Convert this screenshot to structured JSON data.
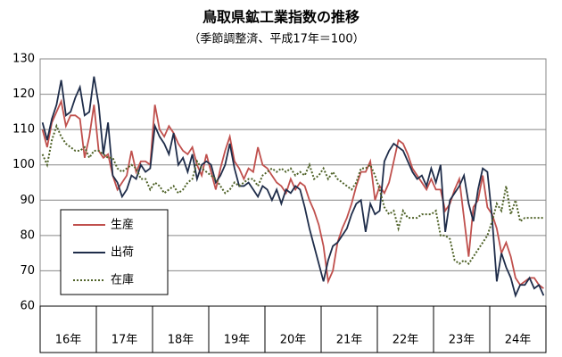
{
  "chart_data": {
    "type": "line",
    "title": "鳥取県鉱工業指数の推移",
    "subtitle": "（季節調整済、平成17年＝100）",
    "categories": [
      null,
      null,
      null,
      null,
      null,
      null,
      "16年",
      null,
      null,
      null,
      null,
      null,
      null,
      null,
      null,
      null,
      null,
      null,
      "17年",
      null,
      null,
      null,
      null,
      null,
      null,
      null,
      null,
      null,
      null,
      null,
      "18年",
      null,
      null,
      null,
      null,
      null,
      null,
      null,
      null,
      null,
      null,
      null,
      "19年",
      null,
      null,
      null,
      null,
      null,
      null,
      null,
      null,
      null,
      null,
      null,
      "20年",
      null,
      null,
      null,
      null,
      null,
      null,
      null,
      null,
      null,
      null,
      null,
      "21年",
      null,
      null,
      null,
      null,
      null,
      null,
      null,
      null,
      null,
      null,
      null,
      "22年",
      null,
      null,
      null,
      null,
      null,
      null,
      null,
      null,
      null,
      null,
      null,
      "23年",
      null,
      null,
      null,
      null,
      null,
      null,
      null,
      null,
      null,
      null,
      null,
      "24年",
      null,
      null,
      null,
      null,
      null
    ],
    "series": [
      {
        "name": "生産",
        "color": "#c0504d",
        "dash": false,
        "values": [
          110,
          105,
          112,
          115,
          118,
          111,
          114,
          114,
          113,
          102,
          108,
          117,
          104,
          102,
          103,
          97,
          93,
          95,
          97,
          104,
          98,
          101,
          101,
          100,
          117,
          110,
          108,
          111,
          109,
          106,
          104,
          103,
          105,
          100,
          97,
          103,
          98,
          93,
          99,
          104,
          108,
          101,
          99,
          96,
          99,
          98,
          105,
          100,
          99,
          97,
          95,
          94,
          92,
          96,
          93,
          95,
          94,
          90,
          87,
          83,
          77,
          67,
          70,
          78,
          82,
          85,
          89,
          94,
          98,
          98,
          101,
          90,
          94,
          92,
          95,
          101,
          107,
          106,
          103,
          99,
          97,
          95,
          93,
          96,
          93,
          93,
          87,
          89,
          93,
          96,
          85,
          74,
          88,
          90,
          97,
          88,
          86,
          82,
          75,
          78,
          74,
          68,
          66,
          67,
          68,
          68,
          66,
          65
        ]
      },
      {
        "name": "出荷",
        "color": "#1f2d4a",
        "dash": false,
        "values": [
          112,
          107,
          113,
          117,
          124,
          114,
          115,
          119,
          122,
          114,
          115,
          125,
          117,
          103,
          112,
          97,
          95,
          91,
          93,
          97,
          96,
          100,
          98,
          99,
          111,
          108,
          106,
          103,
          109,
          100,
          102,
          98,
          103,
          96,
          100,
          101,
          100,
          95,
          97,
          100,
          106,
          99,
          94,
          94,
          95,
          93,
          91,
          94,
          93,
          90,
          93,
          89,
          93,
          92,
          94,
          93,
          88,
          82,
          77,
          72,
          67,
          73,
          77,
          78,
          80,
          82,
          86,
          89,
          90,
          81,
          89,
          86,
          87,
          101,
          104,
          106,
          105,
          104,
          101,
          98,
          96,
          97,
          94,
          99,
          95,
          100,
          81,
          90,
          92,
          94,
          97,
          89,
          84,
          93,
          99,
          98,
          85,
          67,
          75,
          71,
          68,
          63,
          66,
          66,
          68,
          65,
          66,
          63
        ]
      },
      {
        "name": "在庫",
        "color": "#4f6228",
        "dash": true,
        "values": [
          103,
          100,
          107,
          111,
          108,
          106,
          105,
          104,
          104,
          105,
          102,
          104,
          104,
          103,
          102,
          102,
          99,
          98,
          99,
          100,
          99,
          96,
          96,
          93,
          95,
          94,
          92,
          93,
          94,
          92,
          93,
          95,
          96,
          101,
          99,
          98,
          97,
          96,
          94,
          92,
          93,
          95,
          94,
          95,
          96,
          96,
          94,
          97,
          98,
          99,
          98,
          99,
          98,
          99,
          97,
          98,
          97,
          100,
          96,
          97,
          99,
          96,
          98,
          96,
          95,
          94,
          93,
          95,
          99,
          99,
          100,
          97,
          93,
          88,
          86,
          87,
          82,
          87,
          85,
          85,
          85,
          86,
          86,
          86,
          87,
          80,
          80,
          79,
          73,
          72,
          73,
          72,
          74,
          76,
          78,
          80,
          84,
          89,
          87,
          94,
          86,
          90,
          84,
          85,
          85,
          85,
          85,
          85
        ]
      }
    ],
    "ylim": [
      60,
      130
    ],
    "yticks": [
      60,
      70,
      80,
      90,
      100,
      110,
      120,
      130
    ],
    "grid": true
  }
}
